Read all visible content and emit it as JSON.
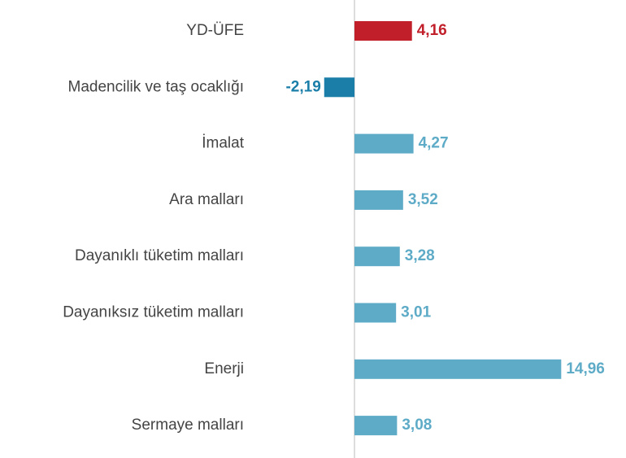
{
  "chart_data": {
    "type": "bar",
    "orientation": "horizontal",
    "categories": [
      "YD-ÜFE",
      "Madencilik ve taş ocaklığı",
      "İmalat",
      "Ara malları",
      "Dayanıklı tüketim malları",
      "Dayanıksız tüketim malları",
      "Enerji",
      "Sermaye malları"
    ],
    "values": [
      4.16,
      -2.19,
      4.27,
      3.52,
      3.28,
      3.01,
      14.96,
      3.08
    ],
    "value_labels": [
      "4,16",
      "-2,19",
      "4,27",
      "3,52",
      "3,28",
      "3,01",
      "14,96",
      "3,08"
    ],
    "colors": [
      "#c1202b",
      "#1a7ea8",
      "#5eabc7",
      "#5eabc7",
      "#5eabc7",
      "#5eabc7",
      "#5eabc7",
      "#5eabc7"
    ],
    "xlim": [
      -4,
      16
    ]
  }
}
